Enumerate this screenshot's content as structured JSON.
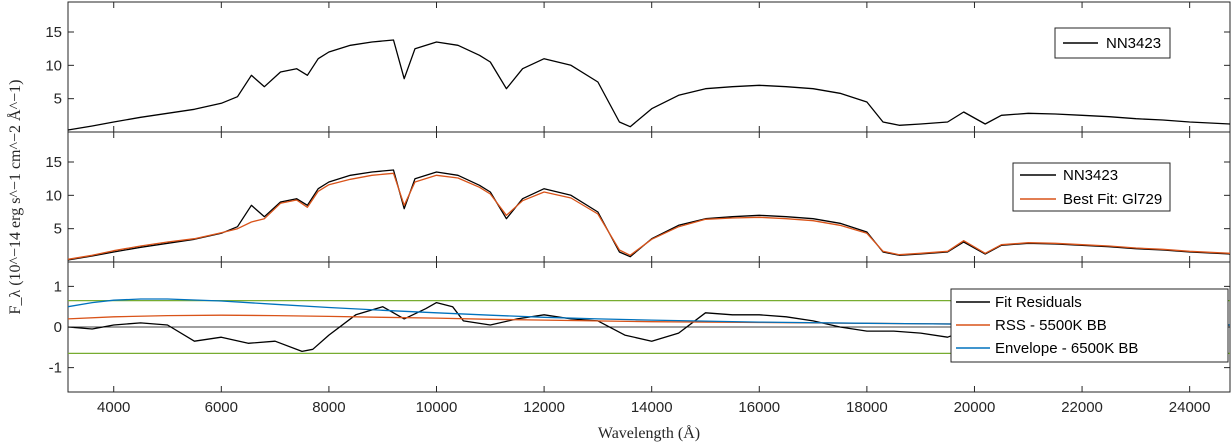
{
  "chart_data": {
    "type": "line",
    "xlabel": "Wavelength (Å)",
    "ylabel": "F_λ (10^−14 erg s^−1 cm^−2 Å^−1)",
    "xlim": [
      3150,
      24750
    ],
    "x_ticks": [
      4000,
      6000,
      8000,
      10000,
      12000,
      14000,
      16000,
      18000,
      20000,
      22000,
      24000
    ],
    "x_tick_labels": [
      "4000",
      "6000",
      "8000",
      "10000",
      "12000",
      "14000",
      "16000",
      "18000",
      "20000",
      "22000",
      "24000"
    ],
    "panels": [
      {
        "name": "top",
        "ylim": [
          0,
          19.5
        ],
        "y_ticks": [
          5,
          10,
          15
        ],
        "y_tick_labels": [
          "5",
          "10",
          "15"
        ],
        "legend_position": "top-right",
        "series": [
          {
            "name": "NN3423",
            "color": "#000000",
            "x": [
              3150,
              3600,
              4000,
              4500,
              5000,
              5500,
              6000,
              6300,
              6560,
              6800,
              7100,
              7400,
              7600,
              7800,
              8000,
              8400,
              8800,
              9200,
              9400,
              9600,
              10000,
              10400,
              10800,
              11000,
              11300,
              11600,
              12000,
              12500,
              13000,
              13400,
              13600,
              14000,
              14500,
              15000,
              15500,
              16000,
              16500,
              17000,
              17500,
              18000,
              18300,
              18600,
              19000,
              19500,
              19800,
              20200,
              20500,
              21000,
              21500,
              22000,
              22500,
              23000,
              23500,
              24000,
              24750
            ],
            "y": [
              0.3,
              0.9,
              1.5,
              2.2,
              2.8,
              3.4,
              4.3,
              5.3,
              8.5,
              6.8,
              9.0,
              9.5,
              8.5,
              11.0,
              12.0,
              13.0,
              13.5,
              13.8,
              8.0,
              12.5,
              13.5,
              13.0,
              11.5,
              10.5,
              6.5,
              9.5,
              11.0,
              10.0,
              7.5,
              1.5,
              0.8,
              3.5,
              5.5,
              6.5,
              6.8,
              7.0,
              6.8,
              6.5,
              5.8,
              4.5,
              1.5,
              1.0,
              1.2,
              1.5,
              3.0,
              1.2,
              2.5,
              2.8,
              2.7,
              2.5,
              2.3,
              2.0,
              1.8,
              1.5,
              1.2
            ]
          }
        ]
      },
      {
        "name": "middle",
        "ylim": [
          0,
          19.5
        ],
        "y_ticks": [
          5,
          10,
          15
        ],
        "y_tick_labels": [
          "5",
          "10",
          "15"
        ],
        "legend_position": "top-right",
        "series": [
          {
            "name": "NN3423",
            "color": "#000000",
            "x": [
              3150,
              3600,
              4000,
              4500,
              5000,
              5500,
              6000,
              6300,
              6560,
              6800,
              7100,
              7400,
              7600,
              7800,
              8000,
              8400,
              8800,
              9200,
              9400,
              9600,
              10000,
              10400,
              10800,
              11000,
              11300,
              11600,
              12000,
              12500,
              13000,
              13400,
              13600,
              14000,
              14500,
              15000,
              15500,
              16000,
              16500,
              17000,
              17500,
              18000,
              18300,
              18600,
              19000,
              19500,
              19800,
              20200,
              20500,
              21000,
              21500,
              22000,
              22500,
              23000,
              23500,
              24000,
              24750
            ],
            "y": [
              0.3,
              0.9,
              1.5,
              2.2,
              2.8,
              3.4,
              4.3,
              5.3,
              8.5,
              6.8,
              9.0,
              9.5,
              8.5,
              11.0,
              12.0,
              13.0,
              13.5,
              13.8,
              8.0,
              12.5,
              13.5,
              13.0,
              11.5,
              10.5,
              6.5,
              9.5,
              11.0,
              10.0,
              7.5,
              1.5,
              0.8,
              3.5,
              5.5,
              6.5,
              6.8,
              7.0,
              6.8,
              6.5,
              5.8,
              4.5,
              1.5,
              1.0,
              1.2,
              1.5,
              3.0,
              1.2,
              2.5,
              2.8,
              2.7,
              2.5,
              2.3,
              2.0,
              1.8,
              1.5,
              1.2
            ]
          },
          {
            "name": "Best Fit: Gl729",
            "color": "#d95319",
            "x": [
              3150,
              3600,
              4000,
              4500,
              5000,
              5500,
              6000,
              6300,
              6560,
              6800,
              7100,
              7400,
              7600,
              7800,
              8000,
              8400,
              8800,
              9200,
              9400,
              9600,
              10000,
              10400,
              10800,
              11000,
              11300,
              11600,
              12000,
              12500,
              13000,
              13400,
              13600,
              14000,
              14500,
              15000,
              15500,
              16000,
              16500,
              17000,
              17500,
              18000,
              18300,
              18600,
              19000,
              19500,
              19800,
              20200,
              20500,
              21000,
              21500,
              22000,
              22500,
              23000,
              23500,
              24000,
              24750
            ],
            "y": [
              0.4,
              1.0,
              1.7,
              2.4,
              3.0,
              3.5,
              4.4,
              5.0,
              6.0,
              6.5,
              8.8,
              9.3,
              8.2,
              10.6,
              11.6,
              12.4,
              13.0,
              13.3,
              8.5,
              12.0,
              13.0,
              12.6,
              11.2,
              10.2,
              7.0,
              9.2,
              10.5,
              9.6,
              7.2,
              1.8,
              1.0,
              3.4,
              5.3,
              6.4,
              6.6,
              6.7,
              6.5,
              6.2,
              5.5,
              4.3,
              1.6,
              1.1,
              1.3,
              1.6,
              3.2,
              1.3,
              2.6,
              2.9,
              2.8,
              2.6,
              2.4,
              2.1,
              1.9,
              1.6,
              1.3
            ]
          }
        ]
      },
      {
        "name": "bottom",
        "ylim": [
          -1.6,
          1.6
        ],
        "y_ticks": [
          -1,
          0,
          1
        ],
        "y_tick_labels": [
          "-1",
          "0",
          "1"
        ],
        "legend_position": "right",
        "reference_lines": [
          0.65,
          -0.65
        ],
        "reference_line_color": "#77ac30",
        "series": [
          {
            "name": "Fit Residuals",
            "color": "#000000",
            "x": [
              3150,
              3600,
              4000,
              4500,
              5000,
              5500,
              6000,
              6500,
              7000,
              7500,
              7700,
              8000,
              8500,
              9000,
              9400,
              9800,
              10000,
              10300,
              10500,
              11000,
              11500,
              12000,
              12500,
              13000,
              13500,
              14000,
              14500,
              15000,
              15500,
              16000,
              16500,
              17000,
              17500,
              18000,
              18500,
              19000,
              19500,
              20000,
              21000,
              22000,
              23000,
              24000,
              24750
            ],
            "y": [
              0.0,
              -0.05,
              0.05,
              0.1,
              0.05,
              -0.35,
              -0.25,
              -0.4,
              -0.35,
              -0.6,
              -0.55,
              -0.2,
              0.3,
              0.5,
              0.2,
              0.45,
              0.6,
              0.5,
              0.15,
              0.05,
              0.2,
              0.3,
              0.2,
              0.15,
              -0.2,
              -0.35,
              -0.15,
              0.35,
              0.3,
              0.3,
              0.25,
              0.15,
              0.0,
              -0.1,
              -0.1,
              -0.15,
              -0.25,
              0.0,
              0.05,
              0.1,
              0.1,
              0.05,
              0.05
            ]
          },
          {
            "name": "RSS - 5500K BB",
            "color": "#d95319",
            "x": [
              3150,
              4000,
              5000,
              6000,
              7000,
              8000,
              9000,
              10000,
              11000,
              12000,
              14000,
              16000,
              18000,
              20000,
              22000,
              24750
            ],
            "y": [
              0.2,
              0.25,
              0.28,
              0.29,
              0.28,
              0.26,
              0.24,
              0.22,
              0.19,
              0.17,
              0.13,
              0.11,
              0.09,
              0.07,
              0.06,
              0.05
            ]
          },
          {
            "name": "Envelope - 6500K BB",
            "color": "#0072bd",
            "x": [
              3150,
              3600,
              4000,
              4500,
              5000,
              6000,
              7000,
              8000,
              9000,
              10000,
              11000,
              12000,
              13000,
              14000,
              16000,
              18000,
              20000,
              22000,
              24750
            ],
            "y": [
              0.5,
              0.6,
              0.66,
              0.69,
              0.69,
              0.64,
              0.56,
              0.48,
              0.41,
              0.35,
              0.29,
              0.24,
              0.2,
              0.17,
              0.12,
              0.09,
              0.07,
              0.06,
              0.05
            ]
          }
        ]
      }
    ]
  }
}
